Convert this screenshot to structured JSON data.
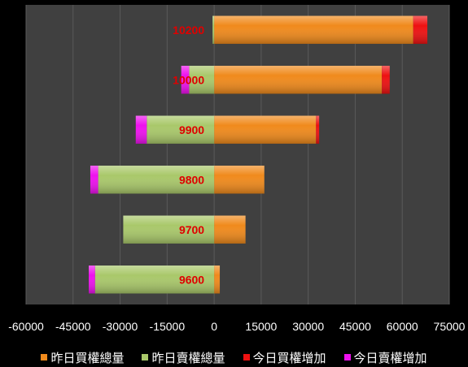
{
  "chart_data": {
    "type": "bar",
    "orientation": "horizontal",
    "stacked": true,
    "categories": [
      "10200",
      "10000",
      "9900",
      "9800",
      "9700",
      "9600"
    ],
    "series": [
      {
        "name": "昨日買權總量",
        "color": "#f08a1c",
        "values": [
          63500,
          53500,
          32500,
          16000,
          10000,
          1800
        ]
      },
      {
        "name": "昨日賣權總量",
        "color": "#a9c86a",
        "values": [
          -500,
          -8000,
          -21500,
          -37000,
          -29000,
          -38000
        ]
      },
      {
        "name": "今日買權增加",
        "color": "#ee1111",
        "values": [
          4500,
          2500,
          1000,
          0,
          0,
          0
        ]
      },
      {
        "name": "今日賣權增加",
        "color": "#ee11ee",
        "values": [
          0,
          -2500,
          -3500,
          -2500,
          0,
          -2000
        ]
      }
    ],
    "xlim": [
      -60000,
      75000
    ],
    "xticks": [
      "-60000",
      "-45000",
      "-30000",
      "-15000",
      "0",
      "15000",
      "30000",
      "45000",
      "60000",
      "75000"
    ],
    "grid": true,
    "legend": "bottom"
  },
  "colors": {
    "plot_bg": "#404040",
    "gridline": "#5a5a5a",
    "category_label": "#e00000"
  }
}
